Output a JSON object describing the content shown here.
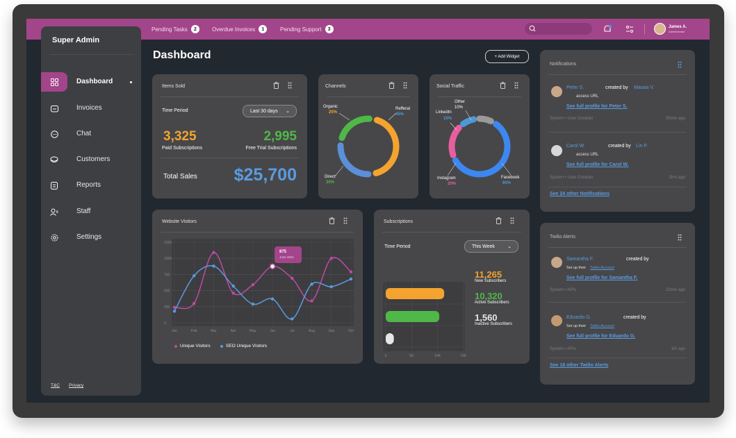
{
  "topbar": {
    "items": [
      {
        "label": "Pending Tasks",
        "count": "2"
      },
      {
        "label": "Overdue Invoices",
        "count": "1"
      },
      {
        "label": "Pending Support",
        "count": "3"
      }
    ],
    "user": {
      "name": "James A.",
      "role": "Administrator"
    }
  },
  "sidebar": {
    "title": "Super Admin",
    "items": [
      {
        "label": "Dashboard",
        "icon": "grid-icon"
      },
      {
        "label": "Invoices",
        "icon": "folder-icon"
      },
      {
        "label": "Chat",
        "icon": "chat-icon"
      },
      {
        "label": "Customers",
        "icon": "customers-icon"
      },
      {
        "label": "Reports",
        "icon": "reports-icon"
      },
      {
        "label": "Staff",
        "icon": "staff-icon"
      },
      {
        "label": "Settings",
        "icon": "settings-icon"
      }
    ],
    "footer": {
      "tc": "T&C",
      "privacy": "Privacy"
    }
  },
  "page": {
    "title": "Dashboard",
    "add_widget": "+ Add Widget"
  },
  "items_sold": {
    "title": "Items Sold",
    "time_label": "Time Period",
    "period": "Last 30 days",
    "paid_value": "3,325",
    "paid_label": "Paid Subscriptions",
    "trial_value": "2,995",
    "trial_label": "Free Trial Subscriptions",
    "total_label": "Total Sales",
    "total_value": "$25,700"
  },
  "channels": {
    "title": "Channels",
    "labels": {
      "organic": "Organic",
      "organic_pct": "25%",
      "referral": "Refferal",
      "referral_pct": "45%",
      "direct": "Direct",
      "direct_pct": "30%"
    }
  },
  "social": {
    "title": "Social Traffic",
    "labels": {
      "other": "Other",
      "other_pct": "10%",
      "linkedin": "LinkedIn",
      "linkedin_pct": "10%",
      "instagram": "Instagram",
      "instagram_pct": "20%",
      "facebook": "Facebook",
      "facebook_pct": "60%"
    }
  },
  "visitors": {
    "title": "Website Visitors",
    "tooltip_value": "875",
    "tooltip_date": "June 2021",
    "legend": [
      "Unique Visitors",
      "SEO Unique Visitors"
    ]
  },
  "subscriptions": {
    "title": "Subscriptions",
    "time_label": "Time Period",
    "period": "This Week",
    "new_value": "11,265",
    "new_label": "New Subscribers",
    "active_value": "10,320",
    "active_label": "Active Subscribers",
    "inactive_value": "1,560",
    "inactive_label": "Inactive Subscribers"
  },
  "notifications": {
    "title": "Notifications",
    "items": [
      {
        "user": "Peter S.",
        "text": "created by",
        "by": "Maraia V.",
        "sub": "access URL",
        "link": "See full profile for Peter S.",
        "meta": "System  •  User Creation",
        "time": "55min ago"
      },
      {
        "user": "Carol W.",
        "text": "created by",
        "by": "Lin P.",
        "sub": "access URL",
        "link": "See full profile for Carol W.",
        "meta": "System  •  User Creation",
        "time": "2hrs ago"
      }
    ],
    "more": "See 24 other Notifications"
  },
  "twilio": {
    "title": "Twilio Alerts",
    "items": [
      {
        "user": "Samantha F.",
        "text": "created by",
        "sub": "Set up their",
        "sub_link": "Twilio Account",
        "link": "See full profile for Samantha F.",
        "meta": "System  •  APIs",
        "time": "23min ago"
      },
      {
        "user": "Eduardo G.",
        "text": "created by",
        "sub": "Set up their",
        "sub_link": "Twilio Account",
        "link": "See full profile for Eduardo G.",
        "meta": "System  •  APIs",
        "time": "1hr ago"
      }
    ],
    "more": "See 18 other Twilio Alerts"
  },
  "chart_data": [
    {
      "type": "pie",
      "title": "Channels",
      "categories": [
        "Organic",
        "Refferal",
        "Direct"
      ],
      "values": [
        25,
        45,
        30
      ],
      "colors": [
        "#4fb848",
        "#f4a42e",
        "#5b8fd8"
      ]
    },
    {
      "type": "pie",
      "title": "Social Traffic",
      "categories": [
        "Facebook",
        "Instagram",
        "LinkedIn",
        "Other"
      ],
      "values": [
        60,
        20,
        10,
        10
      ],
      "colors": [
        "#3d87f0",
        "#e75fa0",
        "#4f97d6",
        "#9a9a9a"
      ]
    },
    {
      "type": "line",
      "title": "Website Visitors",
      "categories": [
        "Jan",
        "Feb",
        "Mar",
        "Apr",
        "May",
        "Jun",
        "Jul",
        "Aug",
        "Sep",
        "Oct"
      ],
      "ylim": [
        0,
        1250
      ],
      "yticks": [
        0,
        250,
        500,
        750,
        1000,
        1250
      ],
      "series": [
        {
          "name": "Unique Visitors",
          "color": "#c04aa1",
          "values": [
            240,
            300,
            1090,
            460,
            590,
            875,
            690,
            340,
            1000,
            790
          ]
        },
        {
          "name": "SEO Unique Visitors",
          "color": "#5b9be0",
          "values": [
            180,
            730,
            880,
            570,
            290,
            370,
            60,
            600,
            560,
            680
          ]
        }
      ]
    },
    {
      "type": "bar",
      "title": "Subscriptions",
      "categories": [
        "New Subscribers",
        "Active Subscribers",
        "Inactive Subscribers"
      ],
      "values": [
        11265,
        10320,
        1560
      ],
      "colors": [
        "#f4a42e",
        "#4fb848",
        "#e6e6e6"
      ],
      "xticks": [
        "0",
        "5K",
        "10K",
        "15K"
      ],
      "xlim": [
        0,
        15000
      ]
    }
  ]
}
